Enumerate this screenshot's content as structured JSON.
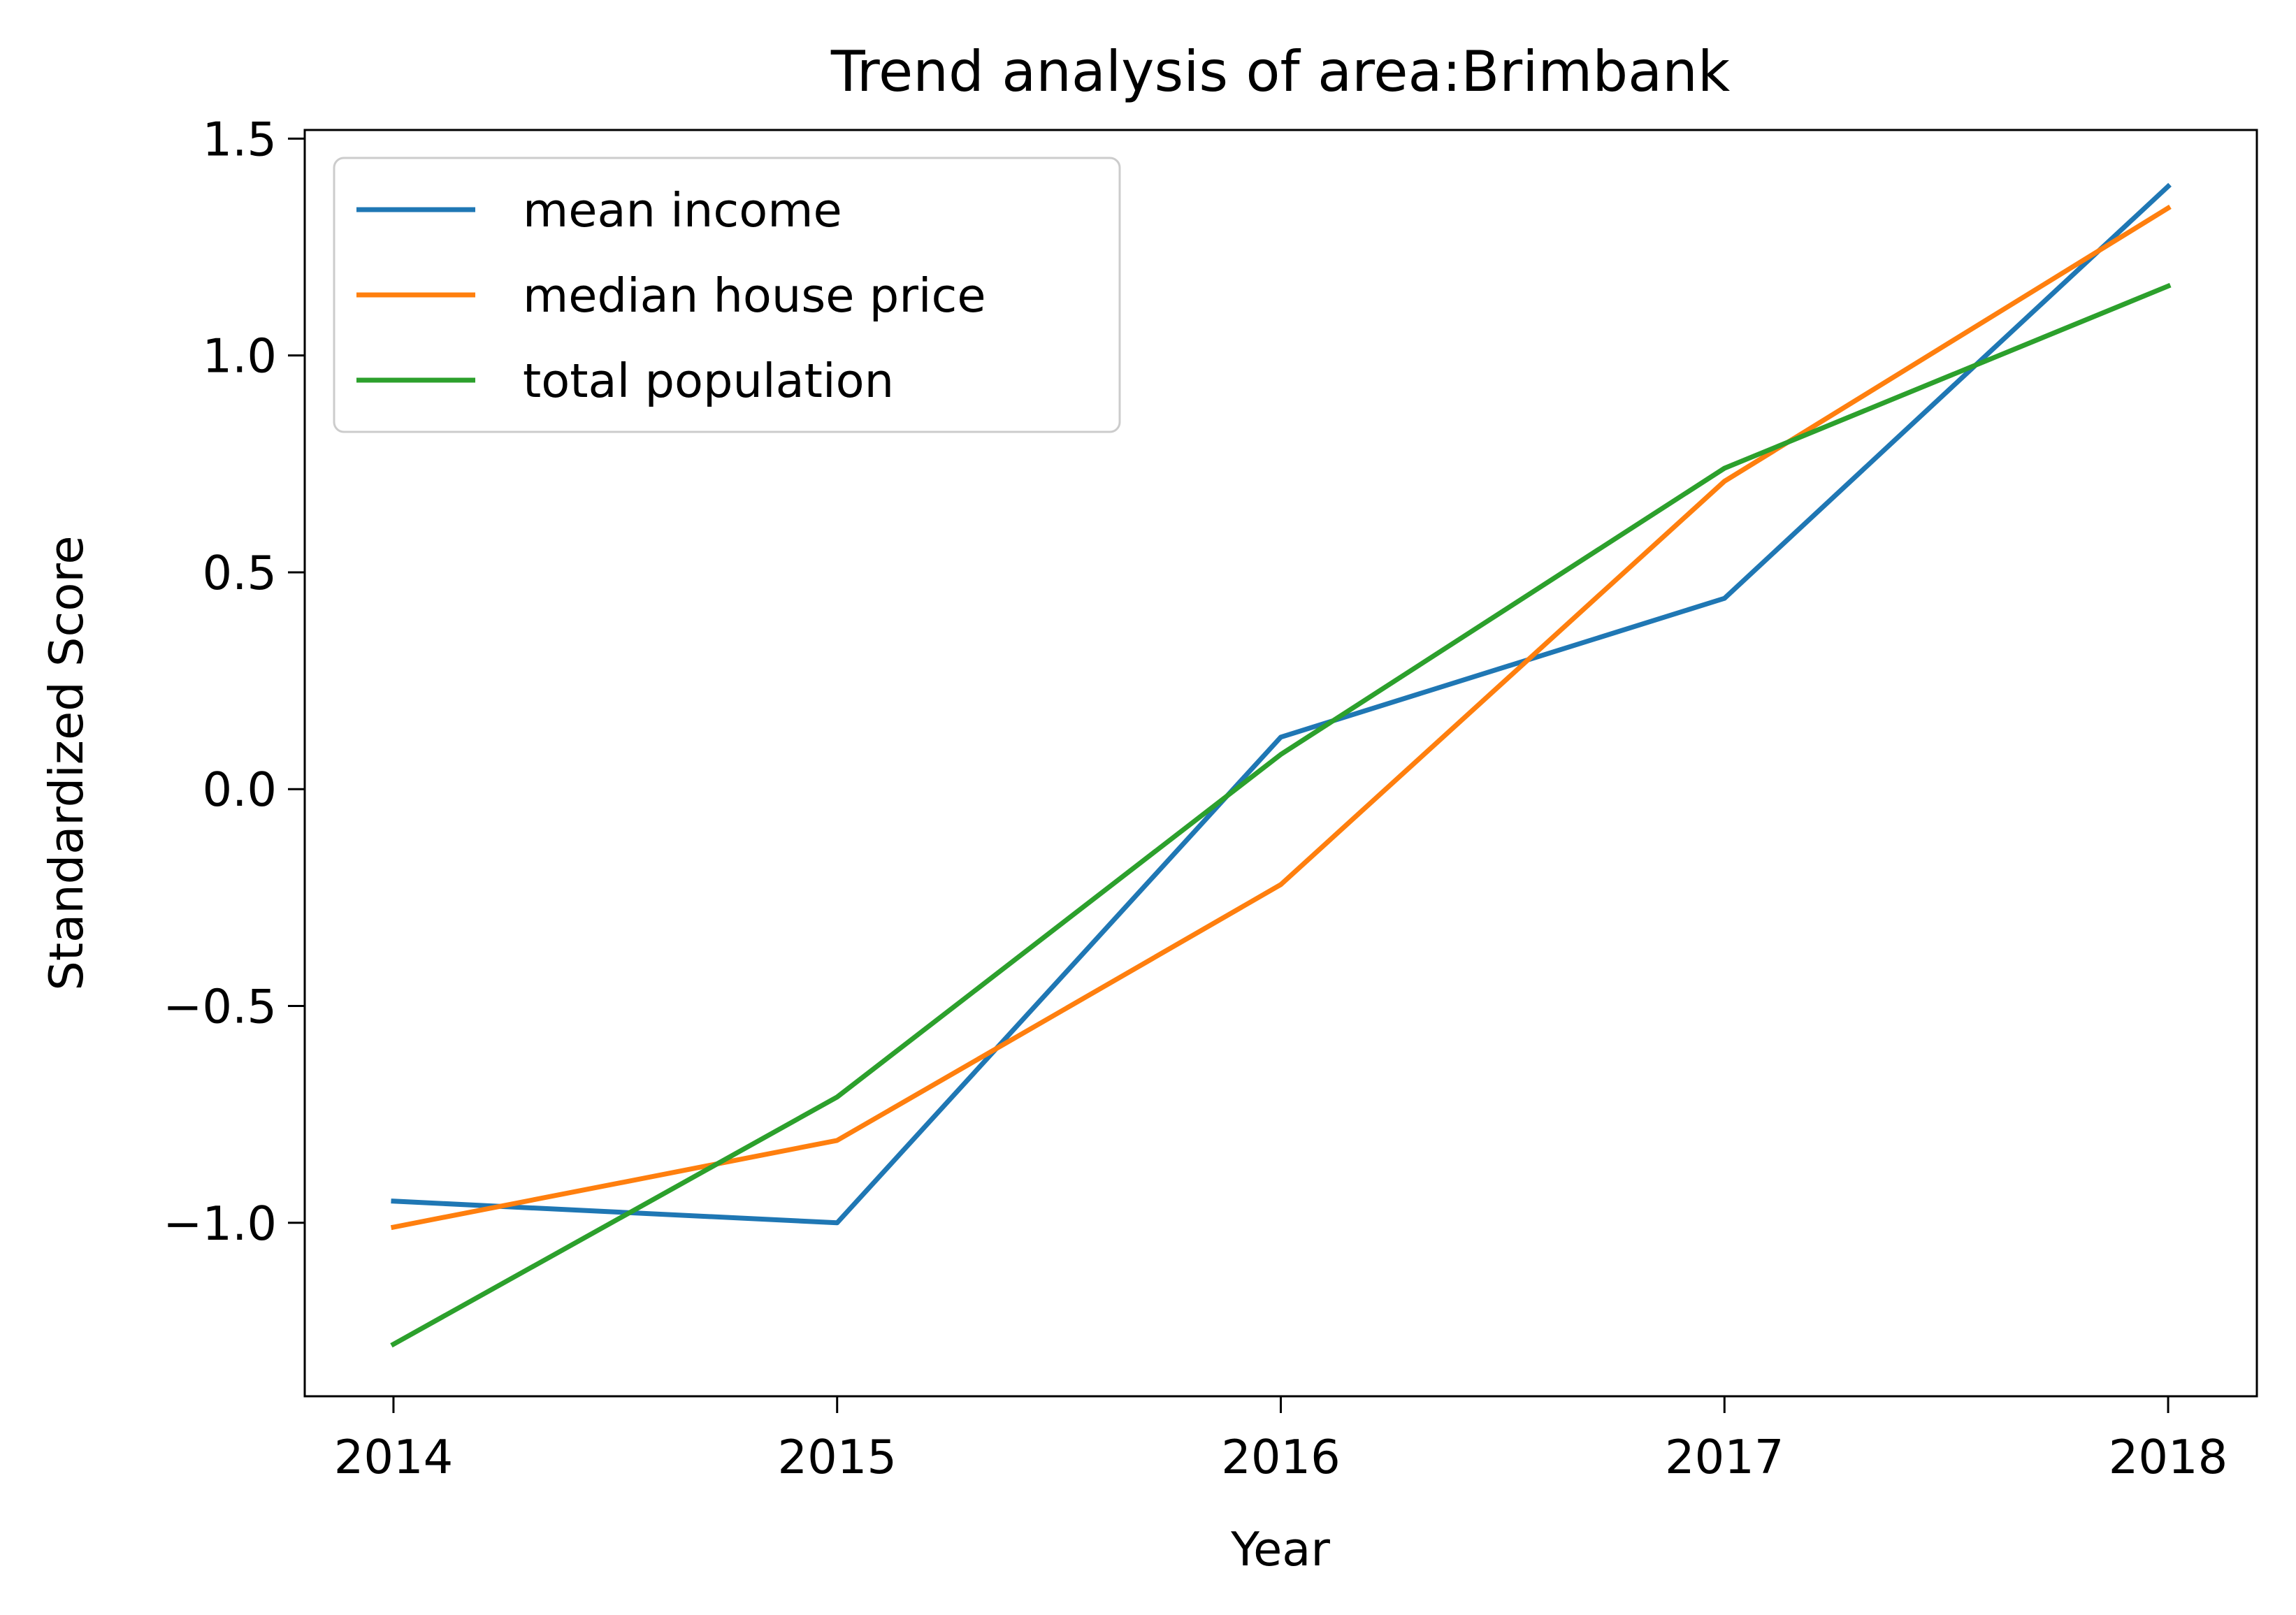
{
  "chart_data": {
    "type": "line",
    "title": "Trend analysis of area:Brimbank",
    "xlabel": "Year",
    "ylabel": "Standardized Score",
    "x": [
      2014,
      2015,
      2016,
      2017,
      2018
    ],
    "x_tick_labels": [
      "2014",
      "2015",
      "2016",
      "2017",
      "2018"
    ],
    "y_ticks": [
      -1.0,
      -0.5,
      0.0,
      0.5,
      1.0,
      1.5
    ],
    "y_tick_labels": [
      "−1.0",
      "−0.5",
      "0.0",
      "0.5",
      "1.0",
      "1.5"
    ],
    "xlim": [
      2013.8,
      2018.2
    ],
    "ylim": [
      -1.4,
      1.52
    ],
    "grid": false,
    "legend_position": "top-left",
    "series": [
      {
        "name": "mean income",
        "color": "#1f77b4",
        "values": [
          -0.95,
          -1.0,
          0.12,
          0.44,
          1.39
        ]
      },
      {
        "name": "median house price",
        "color": "#ff7f0e",
        "values": [
          -1.01,
          -0.81,
          -0.22,
          0.71,
          1.34
        ]
      },
      {
        "name": "total population",
        "color": "#2ca02c",
        "values": [
          -1.28,
          -0.71,
          0.08,
          0.74,
          1.16
        ]
      }
    ]
  }
}
